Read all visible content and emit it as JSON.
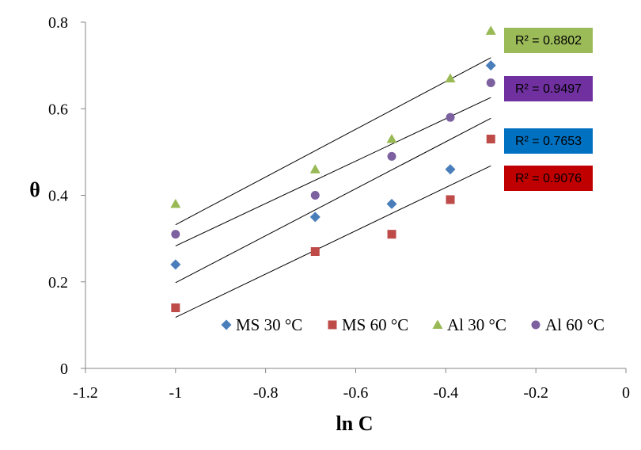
{
  "chart_data": {
    "type": "scatter",
    "title": "",
    "xlabel": "ln C",
    "ylabel": "θ",
    "xlim": [
      -1.2,
      0
    ],
    "ylim": [
      0,
      0.8
    ],
    "x_ticks": [
      -1.2,
      -1,
      -0.8,
      -0.6,
      -0.4,
      -0.2,
      0
    ],
    "x_tick_labels": [
      "-1.2",
      "-1",
      "-0.8",
      "-0.6",
      "-0.4",
      "-0.2",
      "0"
    ],
    "y_ticks": [
      0,
      0.2,
      0.4,
      0.6,
      0.8
    ],
    "y_tick_labels": [
      "0",
      "0.2",
      "0.4",
      "0.6",
      "0.8"
    ],
    "grid": false,
    "legend_position": "bottom-right",
    "series": [
      {
        "name": "MS 30 °C",
        "marker": "diamond",
        "color": "#4a7ebb",
        "x": [
          -1,
          -0.69,
          -0.52,
          -0.39,
          -0.3
        ],
        "y": [
          0.24,
          0.35,
          0.38,
          0.46,
          0.7
        ],
        "r2_label": "R² = 0.7653",
        "r2_bg": "#0070c0",
        "trend": [
          0.198,
          0.578
        ]
      },
      {
        "name": "MS 60 °C",
        "marker": "square",
        "color": "#be4b48",
        "x": [
          -1,
          -0.69,
          -0.52,
          -0.39,
          -0.3
        ],
        "y": [
          0.14,
          0.27,
          0.31,
          0.39,
          0.53
        ],
        "r2_label": "R² = 0.9076",
        "r2_bg": "#c00000",
        "trend": [
          0.118,
          0.468
        ]
      },
      {
        "name": "Al 30 °C",
        "marker": "triangle",
        "color": "#98b954",
        "x": [
          -1,
          -0.69,
          -0.52,
          -0.39,
          -0.3
        ],
        "y": [
          0.38,
          0.46,
          0.53,
          0.67,
          0.78
        ],
        "r2_label": "R² = 0.8802",
        "r2_bg": "#9bbb59",
        "trend": [
          0.332,
          0.718
        ]
      },
      {
        "name": "Al 60 °C",
        "marker": "circle",
        "color": "#7d60a0",
        "x": [
          -1,
          -0.69,
          -0.52,
          -0.39,
          -0.3
        ],
        "y": [
          0.31,
          0.4,
          0.49,
          0.58,
          0.66
        ],
        "r2_label": "R² = 0.9497",
        "r2_bg": "#7030a0",
        "trend": [
          0.283,
          0.626
        ]
      }
    ]
  }
}
